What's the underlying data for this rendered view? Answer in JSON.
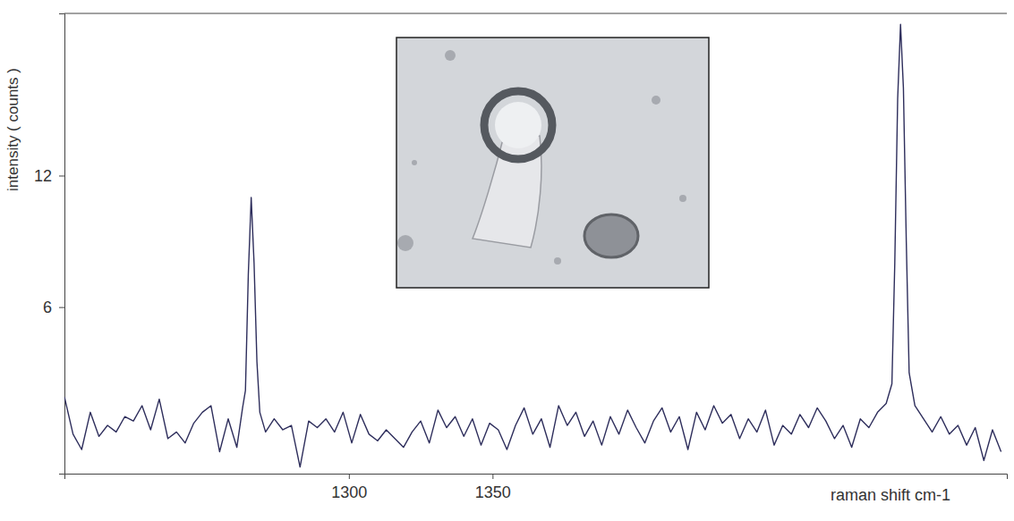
{
  "chart_data": {
    "type": "line",
    "x_label": "raman shift cm-1",
    "y_label": "intensity ( counts )",
    "color": "#2e2e5c",
    "xlim": [
      1201,
      1529
    ],
    "ylim": [
      -1.6,
      19.4
    ],
    "xticks": [
      1300,
      1350
    ],
    "yticks": [
      6,
      12
    ],
    "x": [
      1201,
      1204,
      1207,
      1210,
      1213,
      1216,
      1219,
      1222,
      1225,
      1228,
      1231,
      1234,
      1237,
      1240,
      1243,
      1246,
      1249,
      1252,
      1255,
      1258,
      1261,
      1263,
      1264,
      1265,
      1266,
      1267,
      1268,
      1269,
      1271,
      1274,
      1277,
      1280,
      1283,
      1286,
      1289,
      1292,
      1295,
      1298,
      1301,
      1304,
      1307,
      1310,
      1313,
      1316,
      1319,
      1322,
      1325,
      1328,
      1331,
      1334,
      1337,
      1340,
      1343,
      1346,
      1349,
      1352,
      1355,
      1358,
      1361,
      1364,
      1367,
      1370,
      1373,
      1376,
      1379,
      1382,
      1385,
      1388,
      1391,
      1394,
      1397,
      1400,
      1403,
      1406,
      1409,
      1412,
      1415,
      1418,
      1421,
      1424,
      1427,
      1430,
      1433,
      1436,
      1439,
      1442,
      1445,
      1448,
      1451,
      1454,
      1457,
      1460,
      1463,
      1466,
      1469,
      1472,
      1475,
      1478,
      1481,
      1484,
      1487,
      1489,
      1490,
      1491,
      1492,
      1493,
      1494,
      1495,
      1497,
      1500,
      1503,
      1506,
      1509,
      1512,
      1515,
      1518,
      1521,
      1524,
      1527
    ],
    "values": [
      1.9,
      0.2,
      -0.5,
      1.2,
      0.1,
      0.6,
      0.3,
      1.0,
      0.8,
      1.5,
      0.4,
      1.8,
      0.0,
      0.3,
      -0.2,
      0.7,
      1.2,
      1.5,
      -0.6,
      0.9,
      -0.4,
      1.4,
      2.2,
      7.5,
      11.0,
      8.0,
      3.5,
      1.2,
      0.3,
      0.9,
      0.4,
      0.6,
      -1.3,
      0.8,
      0.5,
      0.9,
      0.3,
      1.2,
      -0.2,
      1.1,
      0.2,
      -0.1,
      0.4,
      0.0,
      -0.4,
      0.3,
      0.8,
      -0.2,
      1.3,
      0.5,
      1.0,
      0.1,
      0.9,
      -0.3,
      0.7,
      0.4,
      -0.5,
      0.6,
      1.4,
      0.2,
      0.9,
      -0.4,
      1.5,
      0.6,
      1.2,
      0.1,
      0.8,
      -0.3,
      1.0,
      0.2,
      1.3,
      0.5,
      -0.2,
      0.8,
      1.4,
      0.3,
      1.0,
      -0.5,
      1.2,
      0.4,
      1.5,
      0.7,
      1.1,
      0.0,
      0.9,
      0.3,
      1.3,
      -0.3,
      0.6,
      0.2,
      1.1,
      0.5,
      1.4,
      0.8,
      0.0,
      0.6,
      -0.4,
      0.9,
      0.5,
      1.2,
      1.6,
      2.5,
      8.0,
      15.5,
      18.9,
      16.0,
      9.0,
      3.0,
      1.5,
      0.9,
      0.3,
      1.0,
      0.2,
      0.6,
      -0.3,
      0.5,
      -1.0,
      0.4,
      -0.6
    ]
  }
}
